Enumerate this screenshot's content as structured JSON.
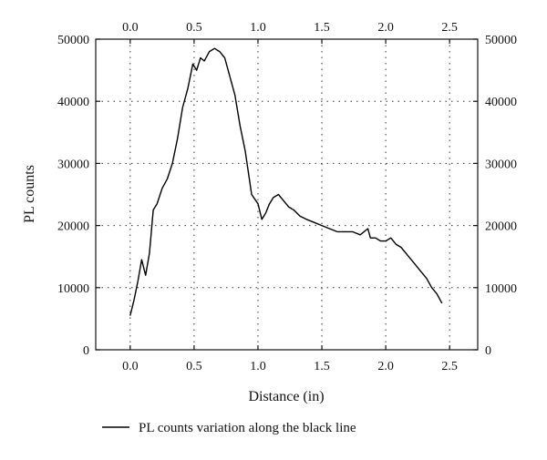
{
  "chart_data": {
    "type": "line",
    "title": "",
    "xlabel": "Distance (in)",
    "ylabel": "PL counts",
    "xlim": [
      -0.27,
      2.72
    ],
    "ylim": [
      0,
      50000
    ],
    "x_ticks": [
      0.0,
      0.5,
      1.0,
      1.5,
      2.0,
      2.5
    ],
    "x_tick_labels": [
      "0.0",
      "0.5",
      "1.0",
      "1.5",
      "2.0",
      "2.5"
    ],
    "y_ticks": [
      0,
      10000,
      20000,
      30000,
      40000,
      50000
    ],
    "y_tick_labels": [
      "0",
      "10000",
      "20000",
      "30000",
      "40000",
      "50000"
    ],
    "mirror_axes": true,
    "grid": true,
    "legend_position": "bottom-center",
    "series": [
      {
        "name": "PL counts variation along the black line",
        "color": "#000000",
        "x": [
          0.0,
          0.03,
          0.06,
          0.09,
          0.12,
          0.15,
          0.18,
          0.21,
          0.25,
          0.29,
          0.33,
          0.37,
          0.41,
          0.45,
          0.49,
          0.52,
          0.55,
          0.58,
          0.62,
          0.66,
          0.7,
          0.74,
          0.78,
          0.82,
          0.86,
          0.9,
          0.95,
          1.0,
          1.03,
          1.06,
          1.09,
          1.12,
          1.16,
          1.2,
          1.24,
          1.28,
          1.33,
          1.38,
          1.44,
          1.5,
          1.56,
          1.62,
          1.68,
          1.74,
          1.8,
          1.86,
          1.88,
          1.92,
          1.96,
          2.0,
          2.04,
          2.08,
          2.12,
          2.16,
          2.2,
          2.24,
          2.28,
          2.32,
          2.36,
          2.4,
          2.44
        ],
        "y": [
          5500,
          8000,
          11000,
          14500,
          12000,
          15500,
          22500,
          23500,
          26000,
          27500,
          30000,
          34000,
          39000,
          42000,
          46000,
          45000,
          47000,
          46500,
          48000,
          48500,
          48000,
          47000,
          44000,
          41000,
          36000,
          32000,
          25000,
          23500,
          21000,
          22000,
          23500,
          24500,
          25000,
          24000,
          23000,
          22500,
          21500,
          21000,
          20500,
          20000,
          19500,
          19000,
          19000,
          19000,
          18500,
          19500,
          18000,
          18000,
          17500,
          17500,
          18000,
          17000,
          16500,
          15500,
          14500,
          13500,
          12500,
          11500,
          10000,
          9000,
          7500
        ]
      }
    ]
  }
}
